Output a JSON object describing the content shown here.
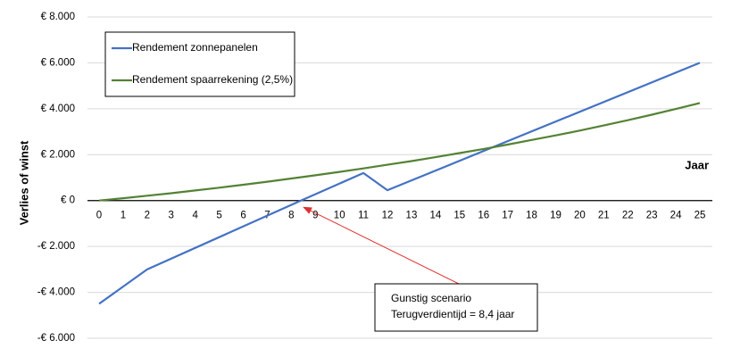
{
  "chart_data": {
    "type": "line",
    "title": "",
    "xlabel": "Jaar",
    "ylabel": "Verlies of winst",
    "xlim": [
      0,
      25
    ],
    "ylim": [
      -6000,
      8000
    ],
    "x_ticks": [
      "0",
      "1",
      "2",
      "3",
      "4",
      "5",
      "6",
      "7",
      "8",
      "9",
      "10",
      "11",
      "12",
      "13",
      "14",
      "15",
      "16",
      "17",
      "18",
      "19",
      "20",
      "21",
      "22",
      "23",
      "24",
      "25"
    ],
    "y_ticks": [
      {
        "value": 8000,
        "label": "€ 8.000"
      },
      {
        "value": 6000,
        "label": "€ 6.000"
      },
      {
        "value": 4000,
        "label": "€ 4.000"
      },
      {
        "value": 2000,
        "label": "€ 2.000"
      },
      {
        "value": 0,
        "label": "€ 0"
      },
      {
        "value": -2000,
        "label": "-€ 2.000"
      },
      {
        "value": -4000,
        "label": "-€ 4.000"
      },
      {
        "value": -6000,
        "label": "-€ 6.000"
      }
    ],
    "grid": "horizontal",
    "legend_position": "top-left",
    "series": [
      {
        "name": "Rendement zonnepanelen",
        "color": "#4472C4",
        "points": [
          [
            0,
            -4500
          ],
          [
            2,
            -3000
          ],
          [
            8.4,
            0
          ],
          [
            11,
            1200
          ],
          [
            12,
            450
          ],
          [
            25,
            6000
          ]
        ]
      },
      {
        "name": "Rendement spaarrekening (2,5%)",
        "color": "#548235",
        "points": [
          [
            0,
            0
          ],
          [
            1,
            100
          ],
          [
            2,
            210
          ],
          [
            3,
            320
          ],
          [
            4,
            440
          ],
          [
            5,
            560
          ],
          [
            6,
            690
          ],
          [
            7,
            820
          ],
          [
            8,
            960
          ],
          [
            9,
            1100
          ],
          [
            10,
            1250
          ],
          [
            11,
            1400
          ],
          [
            12,
            1560
          ],
          [
            13,
            1720
          ],
          [
            14,
            1890
          ],
          [
            15,
            2070
          ],
          [
            16,
            2250
          ],
          [
            17,
            2440
          ],
          [
            18,
            2640
          ],
          [
            19,
            2840
          ],
          [
            20,
            3050
          ],
          [
            21,
            3270
          ],
          [
            22,
            3500
          ],
          [
            23,
            3740
          ],
          [
            24,
            3990
          ],
          [
            25,
            4250
          ]
        ]
      }
    ],
    "annotation": {
      "lines": [
        "Gunstig scenario",
        "Terugverdientijd = 8,4 jaar"
      ],
      "target": [
        8.4,
        0
      ],
      "arrow_color": "#E03030"
    }
  }
}
